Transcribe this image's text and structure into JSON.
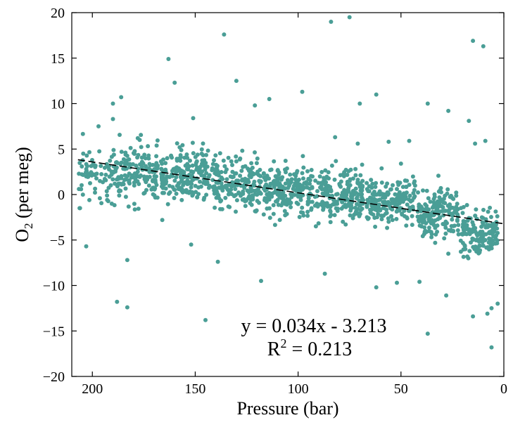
{
  "chart_data": {
    "type": "scatter",
    "xlabel": "Pressure (bar)",
    "ylabel": "O",
    "ylabel_subscript": "2",
    "ylabel_suffix": " (per meg)",
    "x_reversed": true,
    "xlim": [
      0,
      210
    ],
    "ylim": [
      -20,
      20
    ],
    "x_ticks": [
      200,
      150,
      100,
      50,
      0
    ],
    "y_ticks": [
      -20,
      -15,
      -10,
      -5,
      0,
      5,
      10,
      15,
      20
    ],
    "grid": false,
    "legend": "none",
    "point_color": "#4a9e96",
    "fit_line": {
      "slope": 0.034,
      "intercept": -3.213,
      "style": "dashed",
      "color": "#000000"
    },
    "equation": "y = 0.034x - 3.213",
    "r2_prefix": "R",
    "r2_superscript": "2",
    "r2_suffix": " = 0.213",
    "outliers": [
      [
        206,
        -1.5
      ],
      [
        203,
        -5.7
      ],
      [
        188,
        -11.8
      ],
      [
        183,
        -12.4
      ],
      [
        183,
        -7.2
      ],
      [
        186,
        10.7
      ],
      [
        190,
        10.0
      ],
      [
        197,
        7.5
      ],
      [
        190,
        8.3
      ],
      [
        160,
        12.3
      ],
      [
        163,
        14.9
      ],
      [
        151,
        8.4
      ],
      [
        136,
        17.6
      ],
      [
        130,
        12.5
      ],
      [
        121,
        9.8
      ],
      [
        114,
        10.5
      ],
      [
        98,
        11.3
      ],
      [
        84,
        19.0
      ],
      [
        75,
        19.5
      ],
      [
        62,
        11.0
      ],
      [
        70,
        10.0
      ],
      [
        82,
        6.3
      ],
      [
        87,
        -8.7
      ],
      [
        118,
        -9.5
      ],
      [
        145,
        -13.8
      ],
      [
        139,
        -7.4
      ],
      [
        152,
        -5.5
      ],
      [
        166,
        -2.8
      ],
      [
        52,
        -9.7
      ],
      [
        41,
        -9.6
      ],
      [
        37,
        -15.3
      ],
      [
        28,
        -11.1
      ],
      [
        15,
        -13.4
      ],
      [
        8,
        -13.1
      ],
      [
        6,
        -12.5
      ],
      [
        6,
        -16.8
      ],
      [
        3,
        -12.0
      ],
      [
        15,
        16.9
      ],
      [
        10,
        16.3
      ],
      [
        17,
        8.1
      ],
      [
        9,
        5.9
      ],
      [
        27,
        9.2
      ],
      [
        37,
        10.0
      ],
      [
        46,
        5.9
      ],
      [
        56,
        5.8
      ],
      [
        71,
        5.6
      ],
      [
        62,
        -10.2
      ],
      [
        27,
        -6.5
      ],
      [
        50,
        3.4
      ],
      [
        14,
        5.6
      ]
    ],
    "clusters": [
      {
        "x_center": 200,
        "x_spread": 8,
        "y_mean": 2.0,
        "y_sd": 3.0,
        "count": 60
      },
      {
        "x_center": 180,
        "x_spread": 12,
        "y_mean": 2.4,
        "y_sd": 2.6,
        "count": 170
      },
      {
        "x_center": 155,
        "x_spread": 12,
        "y_mean": 1.9,
        "y_sd": 2.5,
        "count": 190
      },
      {
        "x_center": 130,
        "x_spread": 12,
        "y_mean": 1.2,
        "y_sd": 2.5,
        "count": 190
      },
      {
        "x_center": 105,
        "x_spread": 12,
        "y_mean": 0.6,
        "y_sd": 2.4,
        "count": 200
      },
      {
        "x_center": 80,
        "x_spread": 12,
        "y_mean": 0.0,
        "y_sd": 2.3,
        "count": 200
      },
      {
        "x_center": 55,
        "x_spread": 12,
        "y_mean": -0.8,
        "y_sd": 2.3,
        "count": 190
      },
      {
        "x_center": 32,
        "x_spread": 10,
        "y_mean": -2.0,
        "y_sd": 2.3,
        "count": 170
      },
      {
        "x_center": 12,
        "x_spread": 9,
        "y_mean": -4.2,
        "y_sd": 2.2,
        "count": 140
      }
    ]
  }
}
